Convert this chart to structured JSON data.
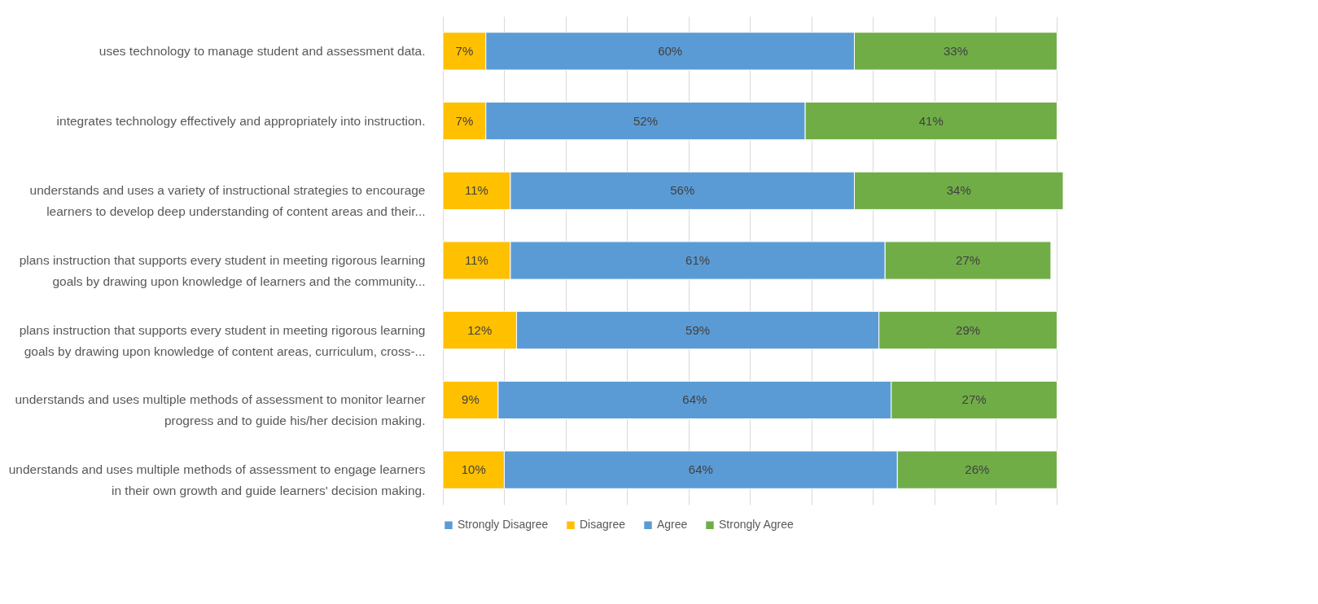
{
  "chart_data": {
    "type": "bar",
    "orientation": "horizontal",
    "stacked": true,
    "categories": [
      "uses technology to manage student and assessment data.",
      "integrates technology effectively and appropriately into instruction.",
      "understands and uses a variety of instructional strategies to encourage\nlearners to develop deep understanding of content areas and their...",
      "plans instruction that supports every student in meeting rigorous learning\ngoals by drawing upon knowledge of learners and the community...",
      "plans instruction that supports every student in meeting rigorous learning\ngoals by drawing upon knowledge of content areas, curriculum, cross-...",
      "understands and uses multiple methods of assessment to monitor learner\nprogress and to guide his/her decision making.",
      "understands and uses multiple methods of assessment to engage learners\nin their own growth and guide learners' decision making."
    ],
    "series": [
      {
        "name": "Strongly Disagree",
        "color": "#5b9bd5",
        "values": [
          0,
          0,
          0,
          0,
          0,
          0,
          0
        ]
      },
      {
        "name": "Disagree",
        "color": "#ffc000",
        "values": [
          7,
          7,
          11,
          11,
          12,
          9,
          10
        ],
        "value_labels": [
          "7%",
          "7%",
          "11%",
          "11%",
          "12%",
          "9%",
          "10%"
        ]
      },
      {
        "name": "Agree",
        "color": "#5b9bd5",
        "values": [
          60,
          52,
          56,
          61,
          59,
          64,
          64
        ],
        "value_labels": [
          "60%",
          "52%",
          "56%",
          "61%",
          "59%",
          "64%",
          "64%"
        ]
      },
      {
        "name": "Strongly Agree",
        "color": "#70ad47",
        "values": [
          33,
          41,
          34,
          27,
          29,
          27,
          26
        ],
        "value_labels": [
          "33%",
          "41%",
          "34%",
          "27%",
          "29%",
          "27%",
          "26%"
        ]
      }
    ],
    "xlim": [
      0,
      101
    ],
    "xticks": [
      {
        "value": 0,
        "label": null
      },
      {
        "value": 10,
        "label": null
      },
      {
        "value": 20,
        "label": null
      },
      {
        "value": 30,
        "label": null
      },
      {
        "value": 40,
        "label": null
      },
      {
        "value": 50,
        "label": null
      },
      {
        "value": 60,
        "label": null
      },
      {
        "value": 70,
        "label": null
      },
      {
        "value": 80,
        "label": null
      },
      {
        "value": 90,
        "label": null
      },
      {
        "value": 100,
        "label": null
      }
    ],
    "grid": "x",
    "tick_labels": "y",
    "legend": "bottom"
  }
}
